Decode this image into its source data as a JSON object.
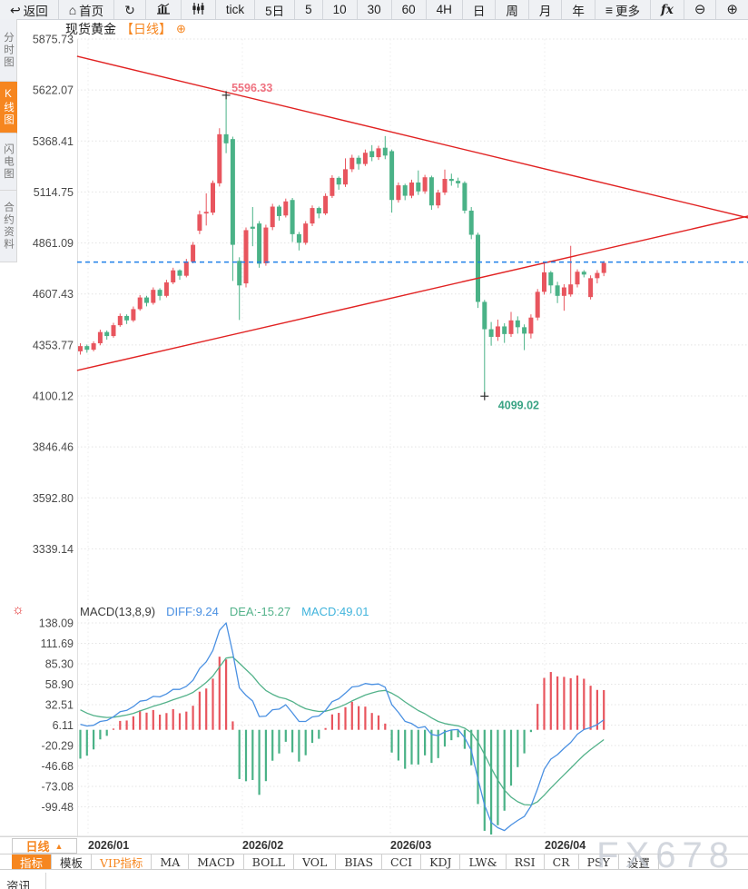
{
  "toolbar": {
    "items": [
      {
        "name": "back",
        "icon": "↩",
        "label": "返回"
      },
      {
        "name": "home",
        "icon": "⌂",
        "label": "首页"
      },
      {
        "name": "refresh",
        "icon": "↻",
        "label": ""
      },
      {
        "name": "line-chart",
        "icon": "#svg-bars",
        "label": ""
      },
      {
        "name": "kline-chart",
        "icon": "#svg-candles",
        "label": ""
      },
      {
        "name": "tick",
        "icon": "",
        "label": "tick"
      },
      {
        "name": "5d",
        "icon": "",
        "label": "5日"
      },
      {
        "name": "5",
        "icon": "",
        "label": "5"
      },
      {
        "name": "10",
        "icon": "",
        "label": "10"
      },
      {
        "name": "30",
        "icon": "",
        "label": "30"
      },
      {
        "name": "60",
        "icon": "",
        "label": "60"
      },
      {
        "name": "4h",
        "icon": "",
        "label": "4H"
      },
      {
        "name": "day",
        "icon": "",
        "label": "日"
      },
      {
        "name": "week",
        "icon": "",
        "label": "周"
      },
      {
        "name": "month",
        "icon": "",
        "label": "月"
      },
      {
        "name": "year",
        "icon": "",
        "label": "年"
      },
      {
        "name": "more",
        "icon": "≡",
        "label": "更多"
      },
      {
        "name": "fx",
        "icon": "",
        "label": "fx"
      },
      {
        "name": "zoom-out",
        "icon": "⊖",
        "label": ""
      },
      {
        "name": "zoom-in",
        "icon": "⊕",
        "label": ""
      }
    ]
  },
  "sidebar": {
    "tabs": [
      {
        "label": "分时图",
        "active": false
      },
      {
        "label": "K线图",
        "active": true
      },
      {
        "label": "闪电图",
        "active": false
      },
      {
        "label": "合约资料",
        "active": false
      }
    ]
  },
  "title": {
    "symbol": "现货黄金",
    "period_tag": "【日线】",
    "add_icon": "⊕"
  },
  "macd_header": {
    "name": "MACD(13,8,9)",
    "diff": "DIFF:9.24",
    "dea": "DEA:-15.27",
    "macd": "MACD:49.01",
    "settings_icon": "☼"
  },
  "period_selector": {
    "label": "日线",
    "caret": "▲"
  },
  "indicator_bar": {
    "tabs": [
      {
        "label": "指标",
        "active": true
      },
      {
        "label": "模板"
      },
      {
        "label": "VIP指标",
        "vip": true
      },
      {
        "label": "MA",
        "latin": true
      },
      {
        "label": "MACD",
        "latin": true
      },
      {
        "label": "BOLL",
        "latin": true
      },
      {
        "label": "VOL",
        "latin": true
      },
      {
        "label": "BIAS",
        "latin": true
      },
      {
        "label": "CCI",
        "latin": true
      },
      {
        "label": "KDJ",
        "latin": true
      },
      {
        "label": "LW&",
        "latin": true
      },
      {
        "label": "RSI",
        "latin": true
      },
      {
        "label": "CR",
        "latin": true
      },
      {
        "label": "PSY",
        "latin": true
      },
      {
        "label": "设置"
      }
    ]
  },
  "bottom_tab": {
    "label": "资讯"
  },
  "watermark": "FX678",
  "colors": {
    "up": "#e8555e",
    "down": "#4ab287",
    "trendline": "#e12222",
    "last_price_line": "#1f80e8",
    "accent_orange": "#f6861f",
    "diff_line": "#4a90e2",
    "dea_line": "#53b28a",
    "high_label": "#ef7280",
    "low_label": "#3aa384",
    "axis_text": "#4a4a4a",
    "grid": "#e4e4e4"
  },
  "chart_data": {
    "type": "candlestick",
    "symbol": "现货黄金",
    "period": "日线",
    "title": "现货黄金【日线】",
    "price_axis_labels": [
      "5875.73",
      "5622.07",
      "5368.41",
      "5114.75",
      "4861.09",
      "4607.43",
      "4353.77",
      "4100.12",
      "3846.46",
      "3592.80",
      "3339.14"
    ],
    "macd_axis_labels": [
      "138.09",
      "111.69",
      "85.30",
      "58.90",
      "32.51",
      "6.11",
      "-20.29",
      "-46.68",
      "-73.08",
      "-99.48"
    ],
    "months": [
      "2026/01",
      "2026/02",
      "2026/03",
      "2026/04"
    ],
    "high_annotation": "5596.33",
    "low_annotation": "4099.02",
    "high_value": 5596.33,
    "low_value": 4099.02,
    "last_price_line": 4766,
    "macd_params": [
      13,
      8,
      9
    ],
    "macd_last_values": {
      "diff": 9.24,
      "dea": -15.27,
      "macd": 49.01
    },
    "macd_seed": {
      "ema_fast": 4345,
      "ema_slow": 4337,
      "dea": 30
    },
    "trendlines": [
      {
        "from": {
          "index": -0.5,
          "price": 5790
        },
        "to": {
          "index": 100.8,
          "price": 4986
        }
      },
      {
        "from": {
          "index": -0.5,
          "price": 4227
        },
        "to": {
          "index": 100.8,
          "price": 4995
        }
      }
    ],
    "candles": [
      [
        4322,
        4362,
        4306,
        4348
      ],
      [
        4348,
        4356,
        4315,
        4330
      ],
      [
        4330,
        4372,
        4322,
        4362
      ],
      [
        4362,
        4430,
        4352,
        4418
      ],
      [
        4418,
        4426,
        4380,
        4398
      ],
      [
        4398,
        4464,
        4390,
        4452
      ],
      [
        4452,
        4510,
        4444,
        4498
      ],
      [
        4498,
        4506,
        4458,
        4476
      ],
      [
        4476,
        4545,
        4468,
        4532
      ],
      [
        4532,
        4602,
        4524,
        4590
      ],
      [
        4590,
        4598,
        4546,
        4563
      ],
      [
        4563,
        4640,
        4554,
        4628
      ],
      [
        4628,
        4636,
        4576,
        4598
      ],
      [
        4598,
        4678,
        4590,
        4665
      ],
      [
        4665,
        4738,
        4656,
        4725
      ],
      [
        4725,
        4730,
        4678,
        4698
      ],
      [
        4698,
        4782,
        4690,
        4768
      ],
      [
        4768,
        4866,
        4760,
        4852
      ],
      [
        4922,
        5022,
        4905,
        5003
      ],
      [
        5008,
        5108,
        4948,
        5016
      ],
      [
        5012,
        5172,
        5000,
        5160
      ],
      [
        5158,
        5432,
        5142,
        5402
      ],
      [
        5402,
        5596.33,
        5308,
        5357
      ],
      [
        5378,
        5390,
        4672,
        4852
      ],
      [
        4772,
        4790,
        4478,
        4650
      ],
      [
        4660,
        4938,
        4640,
        4925
      ],
      [
        4942,
        5040,
        4845,
        4932
      ],
      [
        4958,
        4970,
        4738,
        4758
      ],
      [
        4760,
        4952,
        4748,
        4938
      ],
      [
        4940,
        5056,
        4925,
        5042
      ],
      [
        5042,
        5050,
        4972,
        4995
      ],
      [
        4998,
        5082,
        4988,
        5068
      ],
      [
        5075,
        5085,
        4866,
        4905
      ],
      [
        4905,
        4916,
        4824,
        4862
      ],
      [
        4862,
        4970,
        4852,
        4958
      ],
      [
        4958,
        5048,
        4945,
        5035
      ],
      [
        5035,
        5042,
        4984,
        5008
      ],
      [
        5008,
        5108,
        5000,
        5095
      ],
      [
        5095,
        5198,
        5085,
        5185
      ],
      [
        5185,
        5192,
        5126,
        5152
      ],
      [
        5152,
        5282,
        5140,
        5228
      ],
      [
        5228,
        5300,
        5214,
        5285
      ],
      [
        5285,
        5296,
        5226,
        5254
      ],
      [
        5254,
        5326,
        5244,
        5310
      ],
      [
        5318,
        5348,
        5268,
        5288
      ],
      [
        5288,
        5345,
        5274,
        5332
      ],
      [
        5335,
        5393,
        5278,
        5296
      ],
      [
        5318,
        5326,
        5012,
        5075
      ],
      [
        5075,
        5162,
        5062,
        5148
      ],
      [
        5148,
        5156,
        5074,
        5096
      ],
      [
        5096,
        5176,
        5084,
        5162
      ],
      [
        5162,
        5222,
        5100,
        5118
      ],
      [
        5118,
        5200,
        5106,
        5188
      ],
      [
        5188,
        5196,
        5026,
        5048
      ],
      [
        5048,
        5126,
        5034,
        5112
      ],
      [
        5112,
        5226,
        5100,
        5180
      ],
      [
        5180,
        5206,
        5146,
        5170
      ],
      [
        5170,
        5186,
        5136,
        5158
      ],
      [
        5160,
        5168,
        5008,
        5022
      ],
      [
        5022,
        5040,
        4880,
        4902
      ],
      [
        4902,
        4912,
        4538,
        4568
      ],
      [
        4568,
        4578,
        4099.02,
        4432
      ],
      [
        4432,
        4468,
        4350,
        4394
      ],
      [
        4394,
        4480,
        4374,
        4446
      ],
      [
        4446,
        4462,
        4364,
        4408
      ],
      [
        4408,
        4518,
        4394,
        4476
      ],
      [
        4476,
        4496,
        4410,
        4442
      ],
      [
        4442,
        4456,
        4328,
        4410
      ],
      [
        4410,
        4506,
        4386,
        4490
      ],
      [
        4490,
        4632,
        4476,
        4618
      ],
      [
        4618,
        4760,
        4604,
        4715
      ],
      [
        4715,
        4722,
        4610,
        4650
      ],
      [
        4650,
        4668,
        4562,
        4598
      ],
      [
        4598,
        4656,
        4524,
        4640
      ],
      [
        4605,
        4847,
        4594,
        4655
      ],
      [
        4655,
        4730,
        4640,
        4718
      ],
      [
        4718,
        4726,
        4690,
        4704
      ],
      [
        4592,
        4700,
        4580,
        4686
      ],
      [
        4686,
        4726,
        4660,
        4712
      ],
      [
        4712,
        4772,
        4696,
        4762
      ]
    ]
  }
}
